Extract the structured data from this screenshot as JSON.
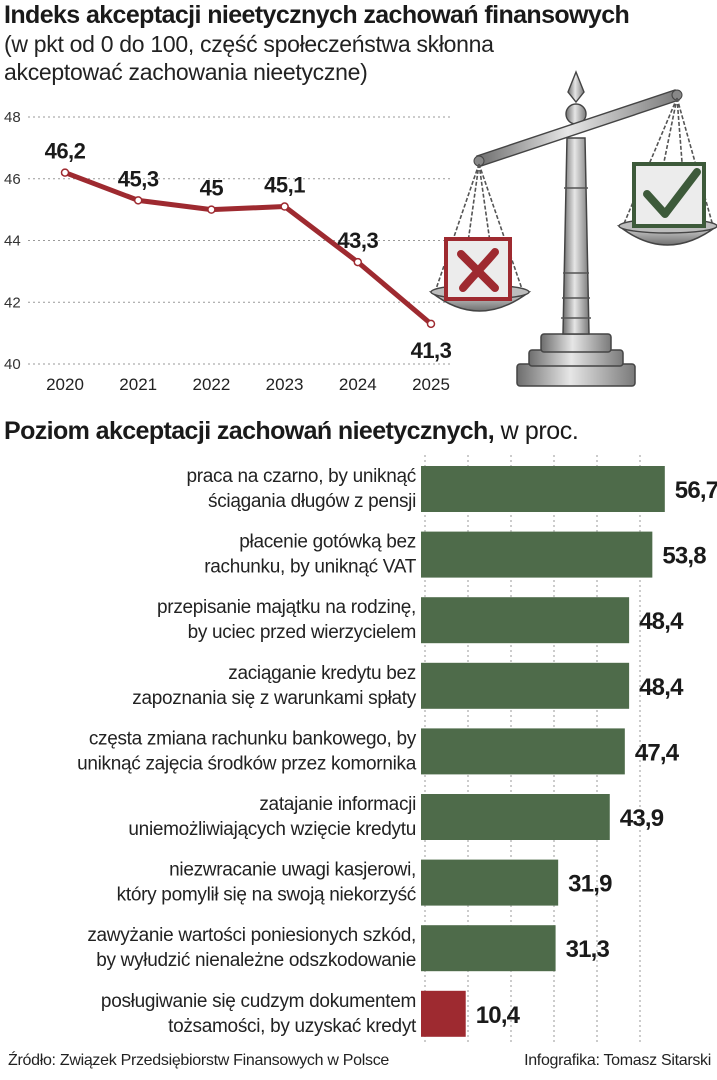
{
  "header": {
    "title": "Indeks akceptacji nieetycznych zachowań finansowych",
    "subtitle_line1": "(w pkt od 0 do 100, część społeczeństwa skłonna",
    "subtitle_line2": "akceptować zachowania nieetyczne)"
  },
  "colors": {
    "line": "#9e2a30",
    "bar_green": "#4e6b4a",
    "bar_red": "#9e2a30",
    "grid": "#9a9a9a"
  },
  "icons": [
    "scale-of-justice-icon",
    "x-mark-icon",
    "check-mark-icon"
  ],
  "bar_section": {
    "title_bold": "Poziom akceptacji zachowań nieetycznych,",
    "title_normal": " w proc."
  },
  "footer": {
    "source": "Źródło: Związek Przedsiębiorstw Finansowych w Polsce",
    "credit": "Infografika: Tomasz Sitarski"
  },
  "chart_data": [
    {
      "type": "line",
      "x": [
        "2020",
        "2021",
        "2022",
        "2023",
        "2024",
        "2025"
      ],
      "values": [
        46.2,
        45.3,
        45,
        45.1,
        43.3,
        41.3
      ],
      "value_labels": [
        "46,2",
        "45,3",
        "45",
        "45,1",
        "43,3",
        "41,3"
      ],
      "ylim": [
        40,
        48
      ],
      "yticks": [
        "40",
        "42",
        "44",
        "46",
        "48"
      ],
      "grid": true
    },
    {
      "type": "bar",
      "orientation": "horizontal",
      "categories": [
        [
          "praca na czarno, by uniknąć",
          "ściągania długów z pensji"
        ],
        [
          "płacenie gotówką bez",
          "rachunku, by uniknąć VAT"
        ],
        [
          "przepisanie majątku na rodzinę,",
          "by uciec przed wierzycielem"
        ],
        [
          "zaciąganie kredytu bez",
          "zapoznania się z warunkami spłaty"
        ],
        [
          "częsta zmiana rachunku bankowego, by",
          "uniknąć zajęcia środków przez komornika"
        ],
        [
          "zatajanie informacji",
          "uniemożliwiających wzięcie kredytu"
        ],
        [
          "niezwracanie uwagi kasjerowi,",
          "który pomylił się na swoją niekorzyść"
        ],
        [
          "zawyżanie wartości poniesionych szkód,",
          "by wyłudzić nienależne odszkodowanie"
        ],
        [
          "posługiwanie się cudzym dokumentem",
          "tożsamości, by uzyskać kredyt"
        ]
      ],
      "values": [
        56.7,
        53.8,
        48.4,
        48.4,
        47.4,
        43.9,
        31.9,
        31.3,
        10.4
      ],
      "value_labels": [
        "56,7",
        "53,8",
        "48,4",
        "48,4",
        "47,4",
        "43,9",
        "31,9",
        "31,3",
        "10,4"
      ],
      "highlight": [
        false,
        false,
        false,
        false,
        false,
        false,
        false,
        false,
        true
      ],
      "grid": true
    }
  ]
}
